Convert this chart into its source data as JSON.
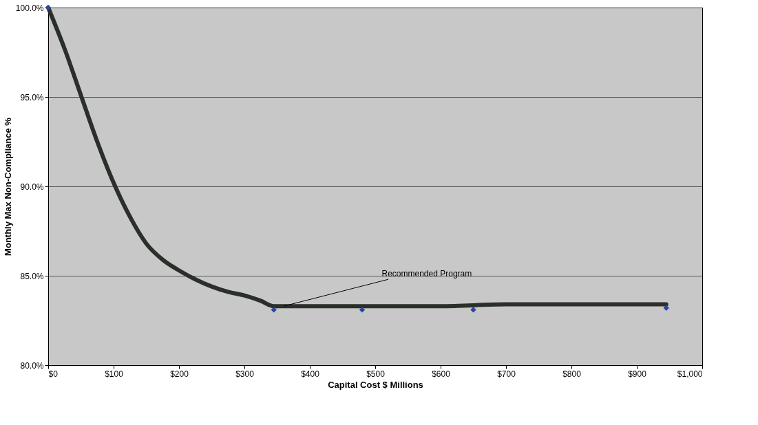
{
  "chart_data": {
    "type": "line",
    "xlabel": "Capital Cost $ Millions",
    "ylabel": "Monthly Max Non-Compliance %",
    "xlim": [
      0,
      1000
    ],
    "ylim": [
      80,
      100
    ],
    "xticks": [
      {
        "value": 0,
        "label": "$0"
      },
      {
        "value": 100,
        "label": "$100"
      },
      {
        "value": 200,
        "label": "$200"
      },
      {
        "value": 300,
        "label": "$300"
      },
      {
        "value": 400,
        "label": "$400"
      },
      {
        "value": 500,
        "label": "$500"
      },
      {
        "value": 600,
        "label": "$600"
      },
      {
        "value": 700,
        "label": "$700"
      },
      {
        "value": 800,
        "label": "$800"
      },
      {
        "value": 900,
        "label": "$900"
      },
      {
        "value": 1000,
        "label": "$1,000"
      }
    ],
    "yticks": [
      {
        "value": 80,
        "label": "80.0%"
      },
      {
        "value": 85,
        "label": "85.0%"
      },
      {
        "value": 90,
        "label": "90.0%"
      },
      {
        "value": 95,
        "label": "95.0%"
      },
      {
        "value": 100,
        "label": "100.0%"
      }
    ],
    "grid": "y",
    "series": [
      {
        "type": "line",
        "color": "#2a2f2a",
        "line_style": "solid",
        "marker": "none",
        "x": [
          0,
          25,
          50,
          75,
          100,
          125,
          150,
          175,
          200,
          225,
          250,
          275,
          300,
          325,
          345,
          400,
          500,
          600,
          700,
          800,
          945
        ],
        "values": [
          100,
          97.7,
          95.1,
          92.5,
          90.2,
          88.3,
          86.8,
          85.9,
          85.3,
          84.8,
          84.4,
          84.1,
          83.9,
          83.6,
          83.3,
          83.3,
          83.3,
          83.3,
          83.4,
          83.4,
          83.4
        ]
      },
      {
        "type": "scatter",
        "color": "#2b44a8",
        "marker": "diamond",
        "x": [
          0,
          345,
          480,
          650,
          945
        ],
        "values": [
          100,
          83.1,
          83.1,
          83.1,
          83.2
        ]
      }
    ],
    "annotations": [
      {
        "text": "Recommended Program",
        "x": 360,
        "y": 83.3
      }
    ]
  }
}
